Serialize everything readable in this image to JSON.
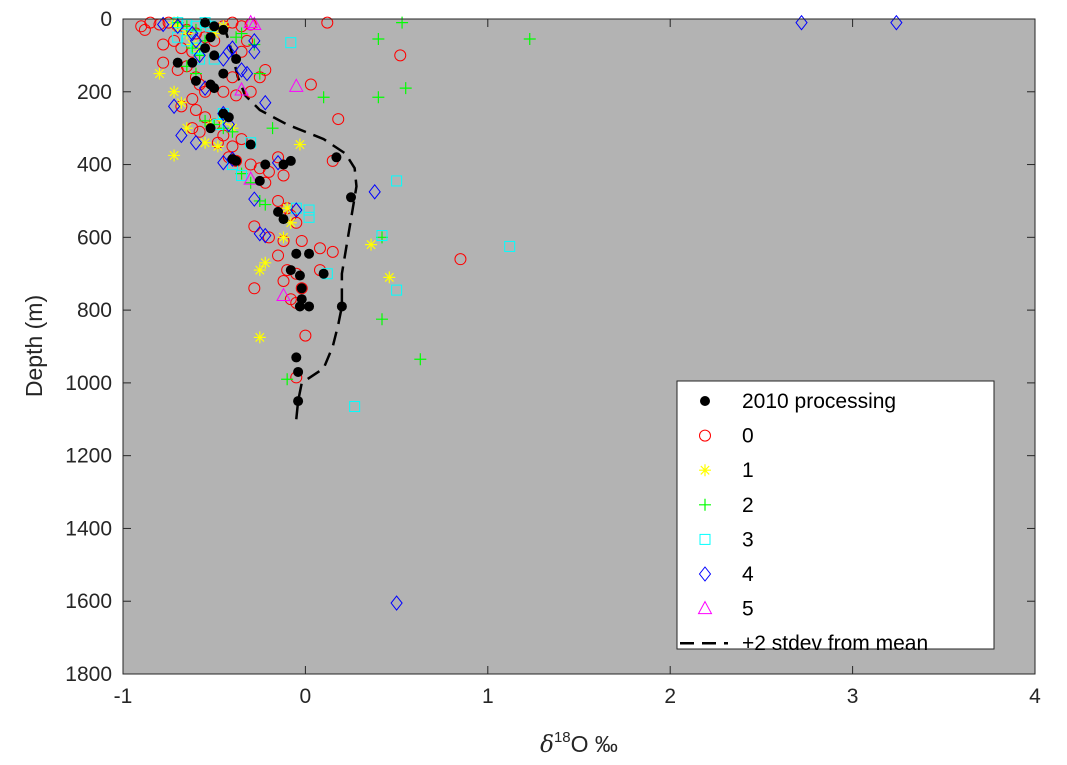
{
  "chart_data": {
    "type": "scatter",
    "xlabel_symbol": "δ",
    "xlabel_sup": "18",
    "xlabel_rest": "O ‰",
    "ylabel": "Depth (m)",
    "xlim": [
      -1,
      4
    ],
    "ylim": [
      0,
      1800
    ],
    "y_reversed": true,
    "x_ticks": [
      -1,
      0,
      1,
      2,
      3,
      4
    ],
    "y_ticks": [
      0,
      200,
      400,
      600,
      800,
      1000,
      1200,
      1400,
      1600,
      1800
    ],
    "grid": false,
    "legend_placement": "bottom-right",
    "background_color": "#b3b3b3",
    "series": [
      {
        "name": "2010 processing",
        "marker": "filled-circle",
        "color": "#000000",
        "points": [
          [
            -0.55,
            10
          ],
          [
            -0.5,
            20
          ],
          [
            -0.45,
            30
          ],
          [
            -0.52,
            50
          ],
          [
            -0.55,
            80
          ],
          [
            -0.5,
            100
          ],
          [
            -0.62,
            120
          ],
          [
            -0.7,
            120
          ],
          [
            -0.45,
            150
          ],
          [
            -0.6,
            170
          ],
          [
            -0.52,
            180
          ],
          [
            -0.5,
            190
          ],
          [
            -0.38,
            110
          ],
          [
            -0.45,
            260
          ],
          [
            -0.42,
            270
          ],
          [
            -0.52,
            300
          ],
          [
            -0.3,
            345
          ],
          [
            -0.4,
            385
          ],
          [
            -0.38,
            390
          ],
          [
            -0.22,
            400
          ],
          [
            -0.12,
            400
          ],
          [
            -0.08,
            390
          ],
          [
            -0.25,
            445
          ],
          [
            -0.15,
            530
          ],
          [
            -0.12,
            550
          ],
          [
            0.17,
            380
          ],
          [
            0.25,
            490
          ],
          [
            -0.05,
            645
          ],
          [
            0.02,
            645
          ],
          [
            -0.08,
            690
          ],
          [
            -0.03,
            705
          ],
          [
            0.1,
            700
          ],
          [
            -0.02,
            740
          ],
          [
            -0.02,
            770
          ],
          [
            -0.03,
            790
          ],
          [
            0.02,
            790
          ],
          [
            0.2,
            790
          ],
          [
            -0.05,
            930
          ],
          [
            -0.04,
            970
          ],
          [
            -0.04,
            1050
          ]
        ]
      },
      {
        "name": "0",
        "marker": "open-circle",
        "color": "#ff0000",
        "points": [
          [
            -0.9,
            20
          ],
          [
            -0.85,
            10
          ],
          [
            -0.8,
            15
          ],
          [
            -0.88,
            30
          ],
          [
            -0.75,
            10
          ],
          [
            -0.7,
            20
          ],
          [
            -0.65,
            30
          ],
          [
            -0.6,
            40
          ],
          [
            -0.72,
            60
          ],
          [
            -0.78,
            70
          ],
          [
            -0.68,
            80
          ],
          [
            -0.62,
            90
          ],
          [
            -0.55,
            50
          ],
          [
            -0.5,
            60
          ],
          [
            -0.45,
            20
          ],
          [
            -0.4,
            10
          ],
          [
            -0.35,
            20
          ],
          [
            -0.3,
            15
          ],
          [
            -0.78,
            120
          ],
          [
            -0.7,
            140
          ],
          [
            -0.65,
            130
          ],
          [
            -0.6,
            160
          ],
          [
            -0.58,
            180
          ],
          [
            -0.55,
            200
          ],
          [
            -0.62,
            220
          ],
          [
            -0.68,
            240
          ],
          [
            -0.6,
            250
          ],
          [
            -0.55,
            270
          ],
          [
            -0.62,
            300
          ],
          [
            -0.58,
            310
          ],
          [
            -0.5,
            290
          ],
          [
            -0.45,
            320
          ],
          [
            -0.48,
            340
          ],
          [
            -0.4,
            350
          ],
          [
            -0.35,
            330
          ],
          [
            -0.42,
            380
          ],
          [
            -0.38,
            390
          ],
          [
            -0.3,
            400
          ],
          [
            -0.25,
            410
          ],
          [
            -0.2,
            420
          ],
          [
            -0.15,
            380
          ],
          [
            -0.12,
            430
          ],
          [
            -0.22,
            450
          ],
          [
            -0.15,
            500
          ],
          [
            -0.1,
            520
          ],
          [
            -0.08,
            540
          ],
          [
            -0.05,
            560
          ],
          [
            -0.28,
            570
          ],
          [
            -0.2,
            600
          ],
          [
            -0.12,
            610
          ],
          [
            -0.02,
            610
          ],
          [
            0.08,
            630
          ],
          [
            0.15,
            640
          ],
          [
            -0.15,
            650
          ],
          [
            -0.1,
            690
          ],
          [
            -0.05,
            700
          ],
          [
            0.08,
            690
          ],
          [
            -0.12,
            720
          ],
          [
            -0.02,
            740
          ],
          [
            -0.28,
            740
          ],
          [
            -0.05,
            780
          ],
          [
            -0.08,
            770
          ],
          [
            0.0,
            870
          ],
          [
            -0.05,
            985
          ],
          [
            0.12,
            10
          ],
          [
            0.52,
            100
          ],
          [
            0.85,
            660
          ],
          [
            0.03,
            180
          ],
          [
            0.18,
            275
          ],
          [
            0.15,
            390
          ],
          [
            -0.25,
            160
          ],
          [
            -0.3,
            200
          ],
          [
            -0.38,
            210
          ],
          [
            -0.45,
            200
          ],
          [
            -0.4,
            160
          ],
          [
            -0.22,
            140
          ],
          [
            -0.32,
            60
          ],
          [
            -0.35,
            90
          ]
        ]
      },
      {
        "name": "1",
        "marker": "star",
        "color": "#ffff00",
        "points": [
          [
            -0.72,
            10
          ],
          [
            -0.7,
            20
          ],
          [
            -0.65,
            40
          ],
          [
            -0.62,
            70
          ],
          [
            -0.58,
            90
          ],
          [
            -0.8,
            150
          ],
          [
            -0.72,
            200
          ],
          [
            -0.68,
            230
          ],
          [
            -0.65,
            300
          ],
          [
            -0.72,
            375
          ],
          [
            -0.48,
            350
          ],
          [
            -0.52,
            290
          ],
          [
            -0.45,
            280
          ],
          [
            -0.4,
            300
          ],
          [
            -0.55,
            340
          ],
          [
            -0.03,
            345
          ],
          [
            -0.1,
            520
          ],
          [
            -0.08,
            560
          ],
          [
            -0.12,
            600
          ],
          [
            -0.22,
            670
          ],
          [
            -0.25,
            690
          ],
          [
            0.36,
            620
          ],
          [
            0.46,
            710
          ],
          [
            -0.25,
            875
          ],
          [
            -0.45,
            20
          ],
          [
            -0.5,
            40
          ]
        ]
      },
      {
        "name": "2",
        "marker": "plus",
        "color": "#00ff00",
        "points": [
          [
            -0.7,
            10
          ],
          [
            -0.65,
            20
          ],
          [
            -0.6,
            30
          ],
          [
            -0.55,
            60
          ],
          [
            -0.62,
            80
          ],
          [
            -0.58,
            100
          ],
          [
            -0.65,
            130
          ],
          [
            -0.6,
            150
          ],
          [
            -0.38,
            50
          ],
          [
            -0.35,
            40
          ],
          [
            -0.28,
            70
          ],
          [
            -0.25,
            150
          ],
          [
            -0.55,
            280
          ],
          [
            -0.5,
            290
          ],
          [
            -0.45,
            300
          ],
          [
            -0.4,
            310
          ],
          [
            -0.18,
            300
          ],
          [
            -0.35,
            425
          ],
          [
            -0.3,
            450
          ],
          [
            -0.25,
            500
          ],
          [
            -0.22,
            510
          ],
          [
            0.1,
            215
          ],
          [
            0.4,
            215
          ],
          [
            0.4,
            55
          ],
          [
            0.53,
            10
          ],
          [
            1.23,
            55
          ],
          [
            0.55,
            190
          ],
          [
            0.42,
            600
          ],
          [
            0.42,
            825
          ],
          [
            0.63,
            935
          ],
          [
            -0.1,
            990
          ]
        ]
      },
      {
        "name": "3",
        "marker": "square",
        "color": "#00ffff",
        "points": [
          [
            -0.7,
            10
          ],
          [
            -0.65,
            15
          ],
          [
            -0.6,
            20
          ],
          [
            -0.55,
            10
          ],
          [
            -0.52,
            20
          ],
          [
            -0.7,
            50
          ],
          [
            -0.65,
            60
          ],
          [
            -0.6,
            80
          ],
          [
            -0.58,
            110
          ],
          [
            -0.5,
            110
          ],
          [
            -0.45,
            260
          ],
          [
            -0.48,
            290
          ],
          [
            -0.3,
            340
          ],
          [
            -0.35,
            430
          ],
          [
            -0.4,
            400
          ],
          [
            -0.05,
            520
          ],
          [
            0.02,
            525
          ],
          [
            0.02,
            545
          ],
          [
            0.42,
            595
          ],
          [
            0.5,
            445
          ],
          [
            1.12,
            625
          ],
          [
            0.5,
            745
          ],
          [
            0.27,
            1065
          ],
          [
            -0.08,
            65
          ],
          [
            0.12,
            700
          ]
        ]
      },
      {
        "name": "4",
        "marker": "diamond",
        "color": "#0000ff",
        "points": [
          [
            -0.78,
            15
          ],
          [
            -0.7,
            20
          ],
          [
            -0.62,
            40
          ],
          [
            -0.6,
            60
          ],
          [
            -0.58,
            100
          ],
          [
            -0.45,
            110
          ],
          [
            -0.4,
            80
          ],
          [
            -0.42,
            90
          ],
          [
            -0.35,
            140
          ],
          [
            -0.32,
            150
          ],
          [
            -0.28,
            60
          ],
          [
            -0.28,
            90
          ],
          [
            -0.22,
            230
          ],
          [
            -0.55,
            190
          ],
          [
            -0.45,
            260
          ],
          [
            -0.42,
            290
          ],
          [
            -0.72,
            240
          ],
          [
            -0.68,
            320
          ],
          [
            -0.6,
            340
          ],
          [
            -0.45,
            395
          ],
          [
            -0.4,
            385
          ],
          [
            -0.15,
            395
          ],
          [
            -0.28,
            495
          ],
          [
            -0.25,
            590
          ],
          [
            -0.05,
            525
          ],
          [
            0.38,
            475
          ],
          [
            2.72,
            10
          ],
          [
            3.24,
            10
          ],
          [
            0.5,
            1605
          ],
          [
            -0.22,
            595
          ]
        ]
      },
      {
        "name": "5",
        "marker": "triangle",
        "color": "#ff00ff",
        "points": [
          [
            -0.3,
            10
          ],
          [
            -0.28,
            15
          ],
          [
            -0.05,
            185
          ],
          [
            -0.3,
            440
          ],
          [
            -0.12,
            760
          ],
          [
            -0.35,
            195
          ]
        ]
      }
    ],
    "line_series": {
      "name": "+2 stdev from mean",
      "style": "dashed",
      "color": "#000000",
      "points": [
        [
          -0.05,
          1100
        ],
        [
          -0.04,
          1050
        ],
        [
          -0.02,
          1000
        ],
        [
          0.1,
          960
        ],
        [
          0.15,
          900
        ],
        [
          0.18,
          840
        ],
        [
          0.2,
          790
        ],
        [
          0.2,
          700
        ],
        [
          0.22,
          640
        ],
        [
          0.24,
          580
        ],
        [
          0.26,
          520
        ],
        [
          0.28,
          460
        ],
        [
          0.27,
          410
        ],
        [
          0.22,
          370
        ],
        [
          0.1,
          330
        ],
        [
          -0.1,
          290
        ],
        [
          -0.25,
          250
        ],
        [
          -0.33,
          210
        ],
        [
          -0.37,
          160
        ],
        [
          -0.4,
          100
        ],
        [
          -0.42,
          60
        ],
        [
          -0.44,
          30
        ],
        [
          -0.45,
          5
        ]
      ]
    }
  }
}
